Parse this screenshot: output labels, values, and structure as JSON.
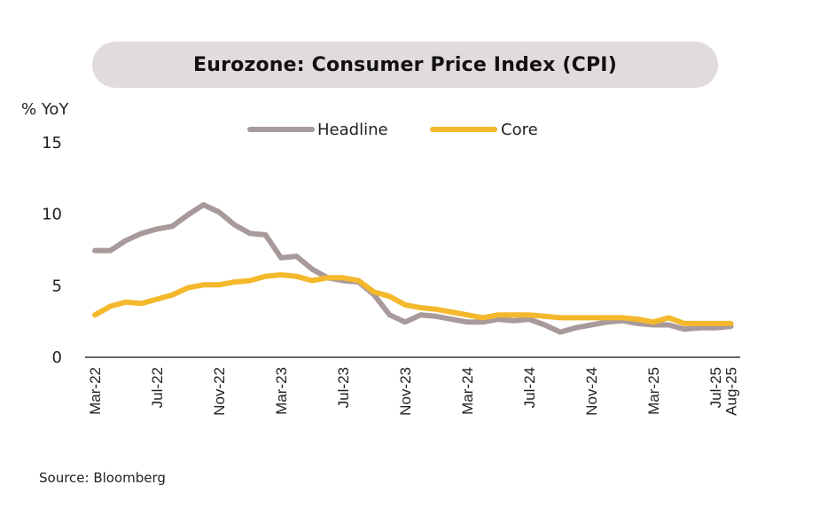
{
  "title": "Eurozone: Consumer Price Index (CPI)",
  "source": "Source: Bloomberg",
  "colors": {
    "headline": "#a89a9b",
    "core": "#f4b82c",
    "axis": "#333333",
    "title_bg": "#e2dbdc"
  },
  "chart_data": {
    "type": "line",
    "title": "Eurozone: Consumer Price Index (CPI)",
    "xlabel": "",
    "ylabel": "% YoY",
    "ylim": [
      0,
      15
    ],
    "yticks": [
      0,
      5,
      10,
      15
    ],
    "grid": false,
    "legend_position": "top-center",
    "x": [
      "Mar-22",
      "Apr-22",
      "May-22",
      "Jun-22",
      "Jul-22",
      "Aug-22",
      "Sep-22",
      "Oct-22",
      "Nov-22",
      "Dec-22",
      "Jan-23",
      "Feb-23",
      "Mar-23",
      "Apr-23",
      "May-23",
      "Jun-23",
      "Jul-23",
      "Aug-23",
      "Sep-23",
      "Oct-23",
      "Nov-23",
      "Dec-23",
      "Jan-24",
      "Feb-24",
      "Mar-24",
      "Apr-24",
      "May-24",
      "Jun-24",
      "Jul-24",
      "Aug-24",
      "Sep-24",
      "Oct-24",
      "Nov-24",
      "Dec-24",
      "Jan-25",
      "Feb-25",
      "Mar-25",
      "Apr-25",
      "May-25",
      "Jun-25",
      "Jul-25",
      "Aug-25"
    ],
    "xtick_labels": [
      "Mar-22",
      "Jul-22",
      "Nov-22",
      "Mar-23",
      "Jul-23",
      "Nov-23",
      "Mar-24",
      "Jul-24",
      "Nov-24",
      "Mar-25",
      "Jul-25",
      "Aug-25"
    ],
    "series": [
      {
        "name": "Headline",
        "values": [
          7.4,
          7.4,
          8.1,
          8.6,
          8.9,
          9.1,
          9.9,
          10.6,
          10.1,
          9.2,
          8.6,
          8.5,
          6.9,
          7.0,
          6.1,
          5.5,
          5.3,
          5.2,
          4.3,
          2.9,
          2.4,
          2.9,
          2.8,
          2.6,
          2.4,
          2.4,
          2.6,
          2.5,
          2.6,
          2.2,
          1.7,
          2.0,
          2.2,
          2.4,
          2.5,
          2.3,
          2.2,
          2.2,
          1.9,
          2.0,
          2.0,
          2.1
        ]
      },
      {
        "name": "Core",
        "values": [
          2.9,
          3.5,
          3.8,
          3.7,
          4.0,
          4.3,
          4.8,
          5.0,
          5.0,
          5.2,
          5.3,
          5.6,
          5.7,
          5.6,
          5.3,
          5.5,
          5.5,
          5.3,
          4.5,
          4.2,
          3.6,
          3.4,
          3.3,
          3.1,
          2.9,
          2.7,
          2.9,
          2.9,
          2.9,
          2.8,
          2.7,
          2.7,
          2.7,
          2.7,
          2.7,
          2.6,
          2.4,
          2.7,
          2.3,
          2.3,
          2.3,
          2.3
        ]
      }
    ]
  }
}
